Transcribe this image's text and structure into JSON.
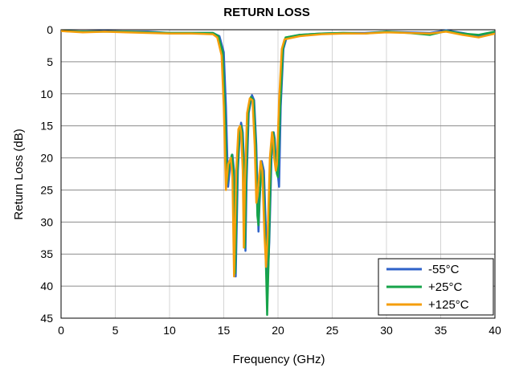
{
  "chart_data": {
    "type": "line",
    "title": "RETURN LOSS",
    "xlabel": "Frequency (GHz)",
    "ylabel": "Return Loss (dB)",
    "xlim": [
      0,
      40
    ],
    "ylim": [
      0,
      45
    ],
    "y_inverted": true,
    "x_ticks": [
      0,
      5,
      10,
      15,
      20,
      25,
      30,
      35,
      40
    ],
    "y_ticks": [
      0,
      5,
      10,
      15,
      20,
      25,
      30,
      35,
      40,
      45
    ],
    "grid": true,
    "legend_position": "bottom-right",
    "series": [
      {
        "name": "-55°C",
        "color": "#2e62c9",
        "points": [
          [
            0,
            0.2
          ],
          [
            2,
            0.3
          ],
          [
            4,
            0.2
          ],
          [
            6,
            0.3
          ],
          [
            8,
            0.3
          ],
          [
            10,
            0.5
          ],
          [
            12,
            0.5
          ],
          [
            14,
            0.5
          ],
          [
            14.6,
            1.0
          ],
          [
            15.0,
            3.5
          ],
          [
            15.2,
            12
          ],
          [
            15.4,
            24.5
          ],
          [
            15.6,
            21
          ],
          [
            15.8,
            19.5
          ],
          [
            15.95,
            22
          ],
          [
            16.1,
            38.5
          ],
          [
            16.3,
            22
          ],
          [
            16.5,
            15.5
          ],
          [
            16.6,
            14.5
          ],
          [
            16.75,
            16
          ],
          [
            16.9,
            22
          ],
          [
            17.0,
            34.5
          ],
          [
            17.1,
            24
          ],
          [
            17.3,
            13
          ],
          [
            17.6,
            10.2
          ],
          [
            17.8,
            11
          ],
          [
            18.0,
            18
          ],
          [
            18.15,
            28
          ],
          [
            18.2,
            31.5
          ],
          [
            18.3,
            27
          ],
          [
            18.5,
            20.5
          ],
          [
            18.7,
            22
          ],
          [
            18.9,
            32
          ],
          [
            19.05,
            39
          ],
          [
            19.2,
            33
          ],
          [
            19.4,
            20
          ],
          [
            19.6,
            16
          ],
          [
            19.7,
            17
          ],
          [
            19.8,
            20.5
          ],
          [
            19.95,
            22
          ],
          [
            20.1,
            24.5
          ],
          [
            20.25,
            12
          ],
          [
            20.5,
            3
          ],
          [
            20.8,
            1.2
          ],
          [
            22,
            0.8
          ],
          [
            24,
            0.6
          ],
          [
            26,
            0.5
          ],
          [
            28,
            0.5
          ],
          [
            30,
            0.3
          ],
          [
            32,
            0.4
          ],
          [
            34,
            0.5
          ],
          [
            35.5,
            0.1
          ],
          [
            37,
            0.5
          ],
          [
            38.5,
            1.0
          ],
          [
            40,
            0.3
          ]
        ]
      },
      {
        "name": "+25°C",
        "color": "#16a34a",
        "points": [
          [
            0,
            0.2
          ],
          [
            2,
            0.3
          ],
          [
            4,
            0.3
          ],
          [
            6,
            0.3
          ],
          [
            8,
            0.4
          ],
          [
            10,
            0.5
          ],
          [
            12,
            0.5
          ],
          [
            14,
            0.5
          ],
          [
            14.5,
            1.0
          ],
          [
            14.9,
            3.5
          ],
          [
            15.1,
            12
          ],
          [
            15.3,
            24
          ],
          [
            15.5,
            21
          ],
          [
            15.75,
            19.5
          ],
          [
            15.9,
            22
          ],
          [
            16.05,
            38
          ],
          [
            16.25,
            22
          ],
          [
            16.45,
            15.5
          ],
          [
            16.6,
            15
          ],
          [
            16.7,
            16
          ],
          [
            16.85,
            22
          ],
          [
            16.95,
            34
          ],
          [
            17.05,
            24
          ],
          [
            17.25,
            13
          ],
          [
            17.5,
            10.5
          ],
          [
            17.75,
            11
          ],
          [
            17.95,
            18
          ],
          [
            18.1,
            29
          ],
          [
            18.2,
            30.5
          ],
          [
            18.3,
            26
          ],
          [
            18.5,
            21
          ],
          [
            18.65,
            23
          ],
          [
            18.85,
            34
          ],
          [
            19.0,
            44.5
          ],
          [
            19.15,
            35
          ],
          [
            19.35,
            20
          ],
          [
            19.55,
            16
          ],
          [
            19.65,
            17
          ],
          [
            19.75,
            20.5
          ],
          [
            19.9,
            22.5
          ],
          [
            20.0,
            23
          ],
          [
            20.2,
            12
          ],
          [
            20.45,
            3
          ],
          [
            20.7,
            1.2
          ],
          [
            22,
            0.8
          ],
          [
            24,
            0.6
          ],
          [
            26,
            0.5
          ],
          [
            28,
            0.6
          ],
          [
            30,
            0.3
          ],
          [
            32,
            0.5
          ],
          [
            34,
            0.8
          ],
          [
            35.5,
            0.2
          ],
          [
            37,
            0.6
          ],
          [
            38.5,
            0.8
          ],
          [
            40,
            0.3
          ]
        ]
      },
      {
        "name": "+125°C",
        "color": "#f59e0b",
        "points": [
          [
            0,
            0.2
          ],
          [
            2,
            0.4
          ],
          [
            4,
            0.3
          ],
          [
            6,
            0.4
          ],
          [
            8,
            0.5
          ],
          [
            10,
            0.6
          ],
          [
            12,
            0.6
          ],
          [
            14,
            0.7
          ],
          [
            14.4,
            1.2
          ],
          [
            14.8,
            4
          ],
          [
            15.0,
            12
          ],
          [
            15.2,
            25
          ],
          [
            15.4,
            21
          ],
          [
            15.65,
            20
          ],
          [
            15.8,
            23
          ],
          [
            15.95,
            38.5
          ],
          [
            16.15,
            22
          ],
          [
            16.35,
            15.5
          ],
          [
            16.5,
            15
          ],
          [
            16.6,
            16
          ],
          [
            16.75,
            22
          ],
          [
            16.85,
            34
          ],
          [
            16.95,
            24
          ],
          [
            17.15,
            13
          ],
          [
            17.4,
            10.7
          ],
          [
            17.65,
            11
          ],
          [
            17.85,
            18
          ],
          [
            18.0,
            27
          ],
          [
            18.1,
            26
          ],
          [
            18.2,
            24
          ],
          [
            18.4,
            20.5
          ],
          [
            18.55,
            22
          ],
          [
            18.75,
            32
          ],
          [
            18.9,
            37
          ],
          [
            19.05,
            32
          ],
          [
            19.25,
            20
          ],
          [
            19.45,
            16
          ],
          [
            19.55,
            17
          ],
          [
            19.65,
            20
          ],
          [
            19.8,
            22
          ],
          [
            19.9,
            21
          ],
          [
            20.1,
            11
          ],
          [
            20.35,
            3
          ],
          [
            20.6,
            1.5
          ],
          [
            22,
            1.0
          ],
          [
            24,
            0.7
          ],
          [
            26,
            0.6
          ],
          [
            28,
            0.6
          ],
          [
            30,
            0.4
          ],
          [
            32,
            0.5
          ],
          [
            34,
            0.6
          ],
          [
            35.5,
            0.3
          ],
          [
            37,
            0.8
          ],
          [
            38.5,
            1.2
          ],
          [
            40,
            0.6
          ]
        ]
      }
    ]
  }
}
